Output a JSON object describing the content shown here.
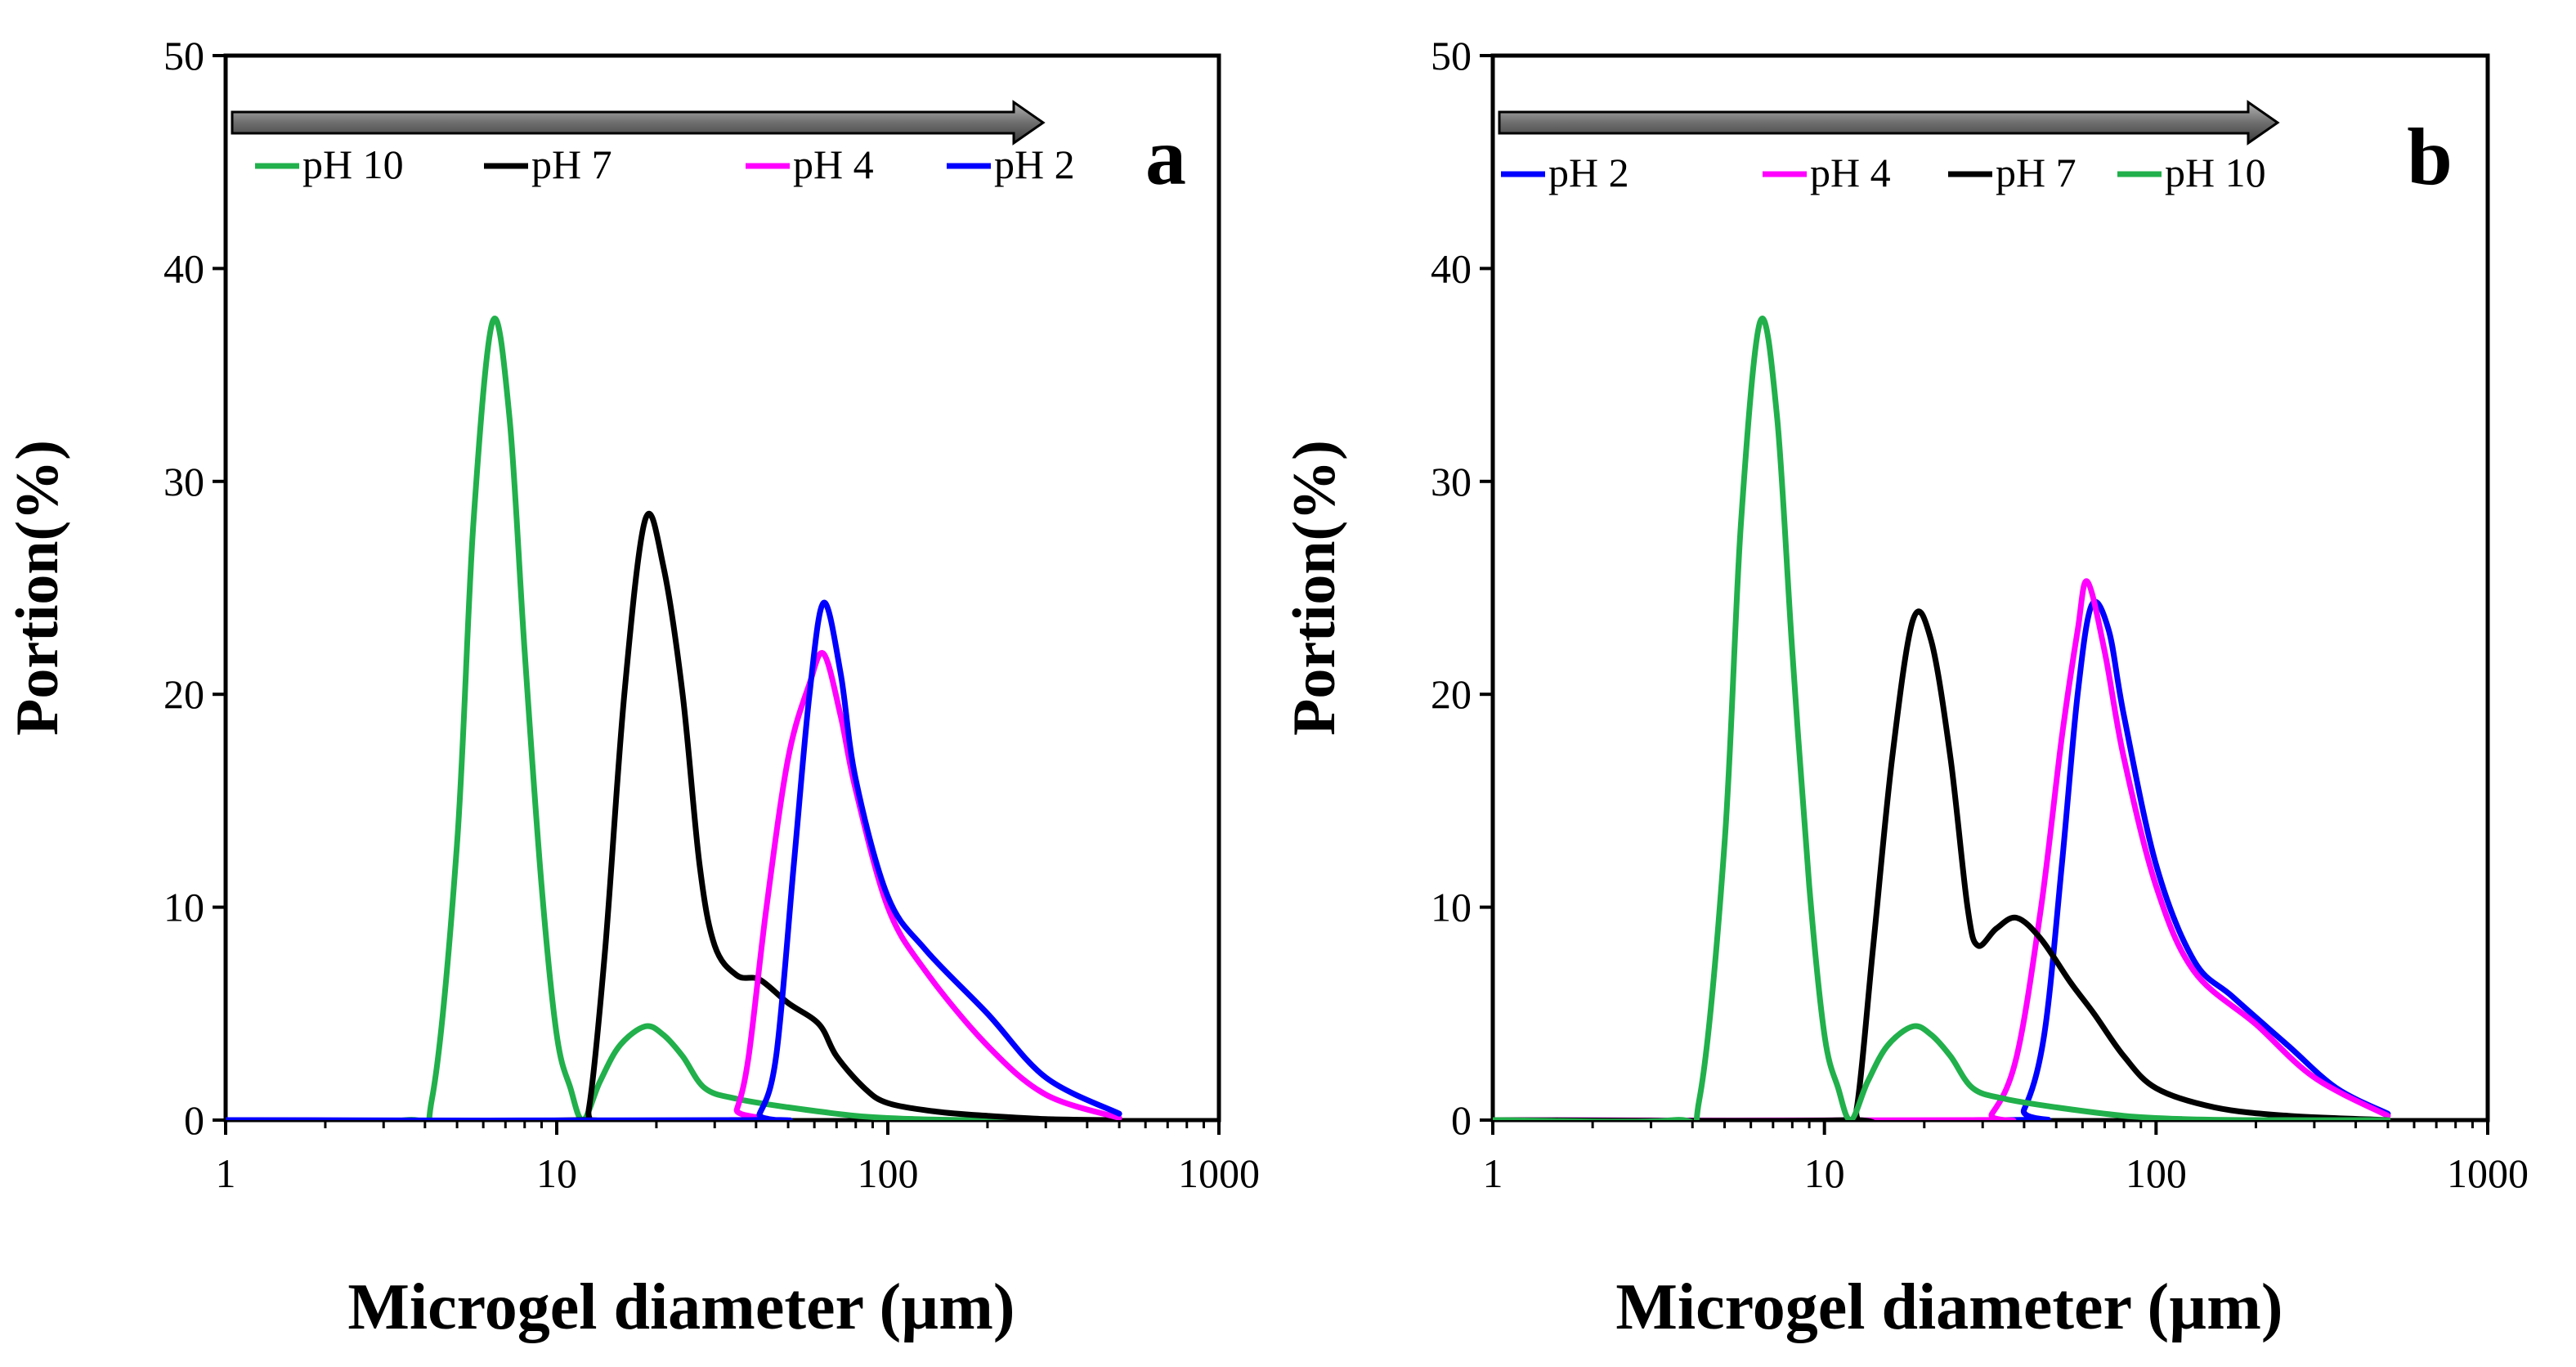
{
  "chart_data": [
    {
      "type": "line",
      "panel_label": "a",
      "xlabel": "Microgel diameter (µm)",
      "ylabel": "Portion(%)",
      "xscale": "log",
      "xlim": [
        1,
        1000
      ],
      "ylim": [
        0,
        50
      ],
      "xticks": [
        "1",
        "10",
        "100",
        "1000"
      ],
      "yticks": [
        "0",
        "10",
        "20",
        "30",
        "40",
        "50"
      ],
      "arrow": "left-to-right",
      "legend": [
        "pH 10",
        "pH 7",
        "pH 4",
        "pH 2"
      ],
      "series": [
        {
          "name": "pH 10",
          "color": "#21b04b",
          "points": [
            [
              1,
              0
            ],
            [
              3.5,
              0
            ],
            [
              4.2,
              1
            ],
            [
              5,
              13
            ],
            [
              5.6,
              28
            ],
            [
              6.4,
              37.5
            ],
            [
              7.2,
              33
            ],
            [
              8,
              22
            ],
            [
              9,
              11
            ],
            [
              10,
              4
            ],
            [
              11,
              1.5
            ],
            [
              12,
              0
            ],
            [
              13.5,
              1.8
            ],
            [
              15.5,
              3.5
            ],
            [
              18.5,
              4.4
            ],
            [
              21,
              4
            ],
            [
              24,
              3
            ],
            [
              28,
              1.5
            ],
            [
              35,
              1
            ],
            [
              50,
              0.6
            ],
            [
              80,
              0.2
            ],
            [
              120,
              0.05
            ],
            [
              200,
              0
            ],
            [
              500,
              0
            ]
          ]
        },
        {
          "name": "pH 7",
          "color": "#000000",
          "points": [
            [
              1,
              0
            ],
            [
              11.5,
              0
            ],
            [
              12.5,
              0.5
            ],
            [
              14,
              8
            ],
            [
              16,
              20
            ],
            [
              18.5,
              28.2
            ],
            [
              21,
              26
            ],
            [
              24,
              20
            ],
            [
              27,
              12
            ],
            [
              30,
              8.2
            ],
            [
              35,
              6.8
            ],
            [
              41,
              6.6
            ],
            [
              50,
              5.5
            ],
            [
              62,
              4.5
            ],
            [
              70,
              3
            ],
            [
              85,
              1.5
            ],
            [
              100,
              0.8
            ],
            [
              140,
              0.4
            ],
            [
              200,
              0.2
            ],
            [
              300,
              0.05
            ],
            [
              500,
              0
            ]
          ]
        },
        {
          "name": "pH 4",
          "color": "#ff00ff",
          "points": [
            [
              1,
              0
            ],
            [
              33,
              0
            ],
            [
              35,
              0.5
            ],
            [
              38,
              3
            ],
            [
              43,
              10
            ],
            [
              50,
              17
            ],
            [
              58,
              20.5
            ],
            [
              64,
              21.9
            ],
            [
              72,
              19
            ],
            [
              80,
              15.5
            ],
            [
              100,
              10
            ],
            [
              130,
              7
            ],
            [
              200,
              3.5
            ],
            [
              300,
              1.2
            ],
            [
              500,
              0.1
            ]
          ]
        },
        {
          "name": "pH 2",
          "color": "#0000ff",
          "points": [
            [
              1,
              0
            ],
            [
              38,
              0
            ],
            [
              41,
              0.3
            ],
            [
              46,
              3
            ],
            [
              52,
              12
            ],
            [
              58,
              20
            ],
            [
              64,
              24.3
            ],
            [
              72,
              21
            ],
            [
              80,
              16
            ],
            [
              100,
              10.5
            ],
            [
              130,
              8
            ],
            [
              200,
              5
            ],
            [
              300,
              2
            ],
            [
              500,
              0.3
            ]
          ]
        }
      ]
    },
    {
      "type": "line",
      "panel_label": "b",
      "xlabel": "Microgel diameter (µm)",
      "ylabel": "Portion(%)",
      "xscale": "log",
      "xlim": [
        1,
        1000
      ],
      "ylim": [
        0,
        50
      ],
      "xticks": [
        "1",
        "10",
        "100",
        "1000"
      ],
      "yticks": [
        "0",
        "10",
        "20",
        "30",
        "40",
        "50"
      ],
      "arrow": "left-to-right",
      "legend": [
        "pH 2",
        "pH 4",
        "pH 7",
        "pH 10"
      ],
      "series": [
        {
          "name": "pH 2",
          "color": "#0000ff",
          "points": [
            [
              1,
              0
            ],
            [
              35,
              0
            ],
            [
              40,
              0.5
            ],
            [
              46,
              4
            ],
            [
              52,
              12
            ],
            [
              58,
              20
            ],
            [
              64,
              24.2
            ],
            [
              72,
              23
            ],
            [
              80,
              19
            ],
            [
              100,
              12
            ],
            [
              130,
              7.5
            ],
            [
              170,
              5.8
            ],
            [
              250,
              3.5
            ],
            [
              350,
              1.5
            ],
            [
              500,
              0.3
            ]
          ]
        },
        {
          "name": "pH 4",
          "color": "#ff00ff",
          "points": [
            [
              1,
              0
            ],
            [
              28,
              0
            ],
            [
              32,
              0.3
            ],
            [
              38,
              3
            ],
            [
              45,
              10
            ],
            [
              52,
              18
            ],
            [
              58,
              23
            ],
            [
              62,
              25.3
            ],
            [
              70,
              22
            ],
            [
              80,
              17
            ],
            [
              100,
              11
            ],
            [
              130,
              7
            ],
            [
              200,
              4.5
            ],
            [
              300,
              2
            ],
            [
              500,
              0.2
            ]
          ]
        },
        {
          "name": "pH 7",
          "color": "#000000",
          "points": [
            [
              1,
              0
            ],
            [
              11.5,
              0
            ],
            [
              12.5,
              0.5
            ],
            [
              14,
              8
            ],
            [
              16,
              17
            ],
            [
              18.5,
              23.5
            ],
            [
              21,
              22.5
            ],
            [
              24,
              17
            ],
            [
              27,
              10
            ],
            [
              29,
              8.2
            ],
            [
              33,
              9
            ],
            [
              38,
              9.5
            ],
            [
              45,
              8.5
            ],
            [
              55,
              6.5
            ],
            [
              65,
              5
            ],
            [
              80,
              3
            ],
            [
              100,
              1.5
            ],
            [
              150,
              0.6
            ],
            [
              250,
              0.2
            ],
            [
              500,
              0
            ]
          ]
        },
        {
          "name": "pH 10",
          "color": "#21b04b",
          "points": [
            [
              1,
              0
            ],
            [
              3.5,
              0
            ],
            [
              4.2,
              1
            ],
            [
              5,
              13
            ],
            [
              5.6,
              28
            ],
            [
              6.4,
              37.5
            ],
            [
              7.2,
              33
            ],
            [
              8,
              22
            ],
            [
              9,
              11
            ],
            [
              10,
              4
            ],
            [
              11,
              1.5
            ],
            [
              12,
              0
            ],
            [
              13.5,
              1.8
            ],
            [
              15.5,
              3.5
            ],
            [
              18.5,
              4.4
            ],
            [
              21,
              4
            ],
            [
              24,
              3
            ],
            [
              28,
              1.5
            ],
            [
              35,
              1
            ],
            [
              50,
              0.6
            ],
            [
              80,
              0.2
            ],
            [
              120,
              0.05
            ],
            [
              200,
              0
            ],
            [
              500,
              0
            ]
          ]
        }
      ]
    }
  ]
}
